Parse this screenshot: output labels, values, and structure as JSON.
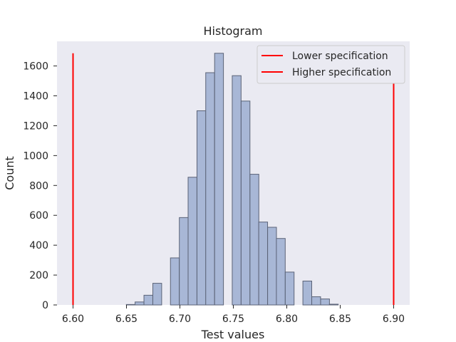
{
  "chart_data": {
    "type": "bar",
    "title": "Histogram",
    "xlabel": "Test values",
    "ylabel": "Count",
    "xlim": [
      6.585,
      6.915
    ],
    "ylim": [
      0,
      1765
    ],
    "x_ticks": [
      6.6,
      6.65,
      6.7,
      6.75,
      6.8,
      6.85,
      6.9
    ],
    "y_ticks": [
      0,
      200,
      400,
      600,
      800,
      1000,
      1200,
      1400,
      1600
    ],
    "grid": false,
    "legend": "top-right",
    "colors": {
      "plot_background": "#eaeaf2",
      "bar_fill": "#a8b7d6",
      "bar_edge": "#5b6377",
      "spec_line": "#ff0000"
    },
    "bin_width": 0.00826,
    "series": [
      {
        "kind": "histogram",
        "bin_centers": [
          6.654,
          6.6622,
          6.6705,
          6.6788,
          6.687,
          6.6953,
          6.7036,
          6.7118,
          6.7201,
          6.7283,
          6.7366,
          6.7449,
          6.7531,
          6.7614,
          6.7697,
          6.7779,
          6.7862,
          6.7944,
          6.8027,
          6.811,
          6.8192,
          6.8275,
          6.8358,
          6.844,
          6.8523
        ],
        "values": [
          3,
          20,
          65,
          145,
          0,
          315,
          585,
          855,
          1300,
          1555,
          1685,
          0,
          1535,
          1365,
          875,
          555,
          520,
          445,
          220,
          0,
          160,
          55,
          40,
          5,
          0
        ]
      },
      {
        "name": "Lower specification",
        "kind": "vline",
        "x": 6.6,
        "y_range": [
          0,
          1685
        ]
      },
      {
        "name": "Higher specification",
        "kind": "vline",
        "x": 6.9,
        "y_range": [
          0,
          1685
        ]
      }
    ]
  }
}
